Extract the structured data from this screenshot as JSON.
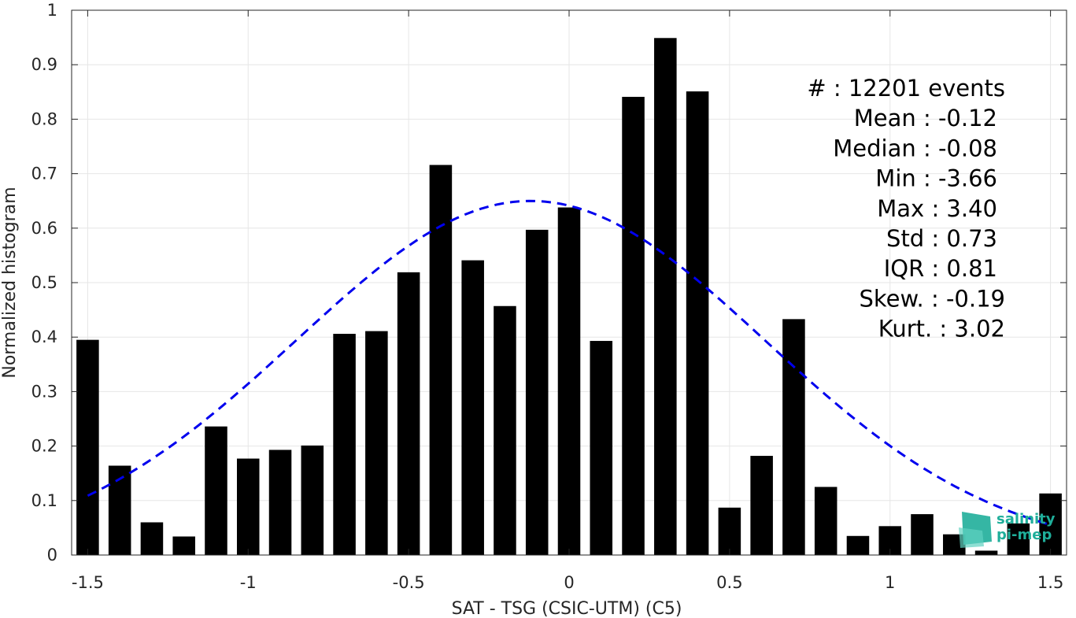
{
  "chart_data": {
    "type": "bar",
    "xlabel": "SAT - TSG (CSIC-UTM) (C5)",
    "ylabel": "Normalized histogram",
    "xlim": [
      -1.55,
      1.55
    ],
    "ylim": [
      0,
      1
    ],
    "x_ticks": [
      -1.5,
      -1,
      -0.5,
      0,
      0.5,
      1,
      1.5
    ],
    "x_tick_labels": [
      "-1.5",
      "-1",
      "-0.5",
      "0",
      "0.5",
      "1",
      "1.5"
    ],
    "y_ticks": [
      0,
      0.1,
      0.2,
      0.3,
      0.4,
      0.5,
      0.6,
      0.7,
      0.8,
      0.9,
      1
    ],
    "y_tick_labels": [
      "0",
      "0.1",
      "0.2",
      "0.3",
      "0.4",
      "0.5",
      "0.6",
      "0.7",
      "0.8",
      "0.9",
      "1"
    ],
    "grid": true,
    "bar_width": 0.07,
    "bar_color": "#000000",
    "bars": {
      "x": [
        -1.5,
        -1.4,
        -1.3,
        -1.2,
        -1.1,
        -1.0,
        -0.9,
        -0.8,
        -0.7,
        -0.6,
        -0.5,
        -0.4,
        -0.3,
        -0.2,
        -0.1,
        0.0,
        0.1,
        0.2,
        0.3,
        0.4,
        0.5,
        0.6,
        0.7,
        0.8,
        0.9,
        1.0,
        1.1,
        1.2,
        1.3,
        1.4,
        1.5
      ],
      "values": [
        0.395,
        0.164,
        0.06,
        0.034,
        0.236,
        0.177,
        0.193,
        0.201,
        0.406,
        0.411,
        0.519,
        0.716,
        0.541,
        0.457,
        0.597,
        0.638,
        0.393,
        0.841,
        0.949,
        0.851,
        0.087,
        0.182,
        0.433,
        0.125,
        0.035,
        0.053,
        0.075,
        0.038,
        0.008,
        0.058,
        0.113
      ]
    },
    "fit_curve": {
      "style": "dashed",
      "color": "#0000ee",
      "mean": -0.12,
      "std": 0.73,
      "peak": 0.65,
      "x_range": [
        -1.5,
        1.5
      ]
    },
    "stats": [
      "#  : 12201 events",
      "Mean : -0.12",
      "Median : -0.08",
      "Min : -3.66",
      "Max : 3.40",
      "Std : 0.73",
      "IQR : 0.81",
      "Skew. : -0.19",
      "Kurt. : 3.02"
    ]
  },
  "logo": {
    "line1": "salinity",
    "line2": "pi-mep",
    "color": "#1fae9a"
  }
}
